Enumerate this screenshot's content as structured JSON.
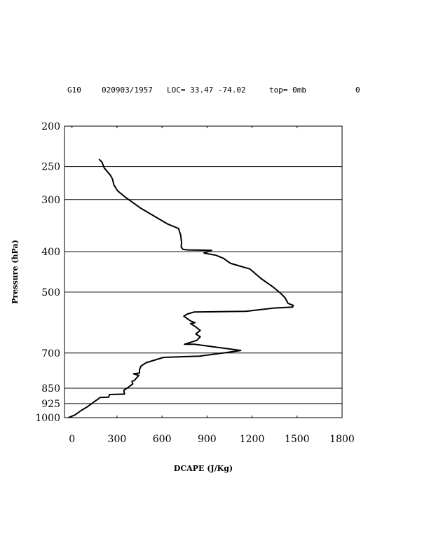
{
  "header": {
    "station": "G10",
    "datetime": "020903/1957",
    "loc": "LOC= 33.47   -74.02",
    "top": "top=   0mb",
    "extra": "0"
  },
  "chart_data": {
    "type": "line",
    "xlabel": "DCAPE (J/Kg)",
    "ylabel": "Pressure (hPa)",
    "xlim": [
      -50,
      1800
    ],
    "ylim": [
      1000,
      200
    ],
    "y_scale": "log",
    "xticks": [
      "0",
      "300",
      "600",
      "900",
      "1200",
      "1500",
      "1800"
    ],
    "xtick_values": [
      0,
      300,
      600,
      900,
      1200,
      1500,
      1800
    ],
    "yticks": [
      "200",
      "250",
      "300",
      "400",
      "500",
      "700",
      "850",
      "925",
      "1000"
    ],
    "ytick_values": [
      200,
      250,
      300,
      400,
      500,
      700,
      850,
      925,
      1000
    ],
    "hgrid": [
      250,
      300,
      400,
      500,
      700,
      850,
      925
    ],
    "grid": "horizontal at pressure levels",
    "series": [
      {
        "x": [
          180,
          200,
          215,
          255,
          270,
          280,
          305,
          355,
          460,
          635,
          710,
          725,
          730,
          728,
          740,
          770,
          930,
          880,
          960,
          1010,
          1045,
          1060,
          1185,
          1260,
          1340,
          1395,
          1420,
          1440,
          1475,
          1470,
          1345,
          1160,
          815,
          770,
          745,
          790,
          820,
          790,
          820,
          855,
          825,
          855,
          835,
          830,
          750,
          815,
          1125,
          1040,
          850,
          610,
          495,
          460,
          450,
          450,
          410,
          445,
          415,
          400,
          405,
          380,
          345,
          350,
          250,
          245,
          185,
          175,
          150,
          100,
          60,
          20,
          -25
        ],
        "y": [
          240,
          244,
          252,
          262,
          268,
          277,
          286,
          296,
          315,
          343,
          352,
          366,
          380,
          390,
          395,
          396,
          397,
          403,
          408,
          415,
          424,
          427,
          440,
          464,
          486,
          505,
          516,
          532,
          538,
          543,
          546,
          556,
          558,
          564,
          571,
          586,
          592,
          595,
          604,
          618,
          630,
          640,
          651,
          653,
          667,
          667,
          690,
          697,
          712,
          717,
          738,
          752,
          767,
          782,
          785,
          792,
          815,
          818,
          830,
          843,
          860,
          878,
          880,
          893,
          895,
          902,
          915,
          943,
          962,
          985,
          1000
        ]
      }
    ]
  }
}
